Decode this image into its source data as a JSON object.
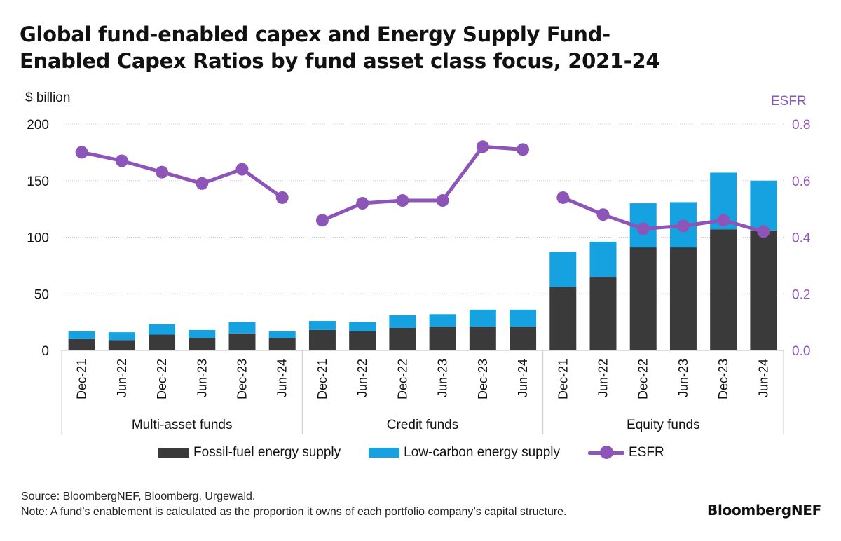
{
  "title_lines": [
    "Global fund-enabled capex and Energy Supply Fund-",
    "Enabled Capex Ratios by fund asset class focus, 2021-24"
  ],
  "source": "Source: BloombergNEF, Bloomberg, Urgewald.",
  "note": "Note: A fund’s enablement is calculated as the proportion it owns of each portfolio company’s capital structure.",
  "brand": "BloombergNEF",
  "colors": {
    "fossil": "#3a3a3a",
    "low_carbon": "#16a1e0",
    "esfr": "#8e55b8",
    "grid": "#cfcfcf"
  },
  "chart_data": {
    "type": "bar",
    "stacked": true,
    "y_left_label": "$ billion",
    "y_right_label": "ESFR",
    "ylim_left": [
      0,
      200
    ],
    "yticks_left": [
      "0",
      "50",
      "100",
      "150",
      "200"
    ],
    "ylim_right": [
      0,
      0.8
    ],
    "yticks_right": [
      "0.0",
      "0.2",
      "0.4",
      "0.6",
      "0.8"
    ],
    "grid": true,
    "legend_position": "bottom",
    "groups": [
      {
        "label": "Multi-asset funds",
        "categories": [
          "Dec-21",
          "Jun-22",
          "Dec-22",
          "Jun-23",
          "Dec-23",
          "Jun-24"
        ],
        "fossil": [
          10,
          9,
          14,
          11,
          15,
          11
        ],
        "low_carbon": [
          7,
          7,
          9,
          7,
          10,
          6
        ],
        "esfr": [
          0.7,
          0.67,
          0.63,
          0.59,
          0.64,
          0.54
        ]
      },
      {
        "label": "Credit funds",
        "categories": [
          "Dec-21",
          "Jun-22",
          "Dec-22",
          "Jun-23",
          "Dec-23",
          "Jun-24"
        ],
        "fossil": [
          18,
          17,
          20,
          21,
          21,
          21
        ],
        "low_carbon": [
          8,
          8,
          11,
          11,
          15,
          15
        ],
        "esfr": [
          0.46,
          0.52,
          0.53,
          0.53,
          0.72,
          0.71
        ]
      },
      {
        "label": "Equity funds",
        "categories": [
          "Dec-21",
          "Jun-22",
          "Dec-22",
          "Jun-23",
          "Dec-23",
          "Jun-24"
        ],
        "fossil": [
          56,
          65,
          91,
          91,
          107,
          106
        ],
        "low_carbon": [
          31,
          31,
          39,
          40,
          50,
          44
        ],
        "esfr": [
          0.54,
          0.48,
          0.43,
          0.44,
          0.46,
          0.42
        ]
      }
    ],
    "series": [
      {
        "name": "Fossil-fuel energy supply",
        "key": "fossil"
      },
      {
        "name": "Low-carbon energy supply",
        "key": "low_carbon"
      },
      {
        "name": "ESFR",
        "key": "esfr"
      }
    ]
  }
}
